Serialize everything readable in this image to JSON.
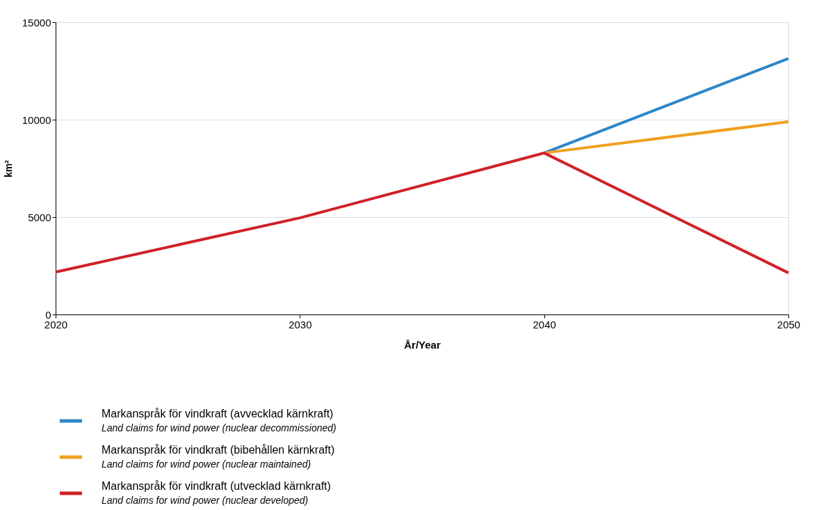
{
  "chart_data": {
    "type": "line",
    "xlabel": "År/Year",
    "ylabel": "km²",
    "x": [
      2020,
      2030,
      2040,
      2050
    ],
    "xlim": [
      2020,
      2050
    ],
    "xticks": [
      2020,
      2030,
      2040,
      2050
    ],
    "ylim": [
      0,
      15000
    ],
    "yticks": [
      0,
      5000,
      10000,
      15000
    ],
    "grid": "y",
    "legend": "bottom",
    "marker": "none",
    "line_style": "solid",
    "series": [
      {
        "name": "Markanspråk för vindkraft (avvecklad kärnkraft)\nLand claims for wind power (nuclear decommissioned)",
        "color": "#2e86c8",
        "values": [
          null,
          null,
          8290,
          13140
        ]
      },
      {
        "name": "Markanspråk för vindkraft (bibehållen kärnkraft)\nLand claims for wind power (nuclear maintained)",
        "color": "#f0a01e",
        "values": [
          null,
          null,
          8290,
          9890
        ]
      },
      {
        "name": "Markanspråk för vindkraft (utvecklad kärnkraft)\nLand claims for wind power (nuclear developed)",
        "color": "#d02128",
        "values": [
          2180,
          4960,
          8290,
          2140
        ]
      }
    ]
  }
}
